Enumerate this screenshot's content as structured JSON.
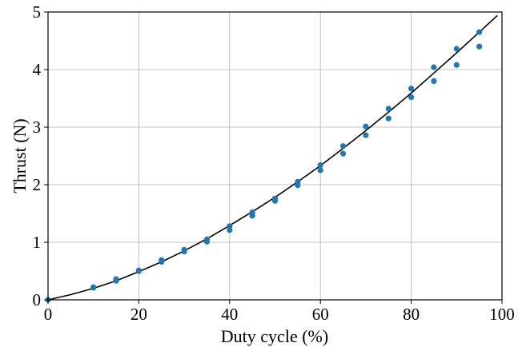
{
  "chart_data": {
    "type": "scatter",
    "xlabel": "Duty cycle (%)",
    "ylabel": "Thrust (N)",
    "xlim": [
      0,
      100
    ],
    "ylim": [
      0,
      5
    ],
    "grid": true,
    "x_ticks": [
      0,
      20,
      40,
      60,
      80,
      100
    ],
    "y_ticks": [
      0,
      1,
      2,
      3,
      4,
      5
    ],
    "x_tick_labels": [
      "0",
      "20",
      "40",
      "60",
      "80",
      "100"
    ],
    "y_tick_labels": [
      "0",
      "1",
      "2",
      "3",
      "4",
      "5"
    ],
    "marker_color": "#1f77b4",
    "curve_color": "#000000",
    "series": [
      {
        "type": "scatter",
        "points": [
          [
            0,
            0.0
          ],
          [
            10,
            0.22
          ],
          [
            10,
            0.21
          ],
          [
            15,
            0.36
          ],
          [
            15,
            0.33
          ],
          [
            20,
            0.51
          ],
          [
            20,
            0.5
          ],
          [
            25,
            0.69
          ],
          [
            25,
            0.66
          ],
          [
            30,
            0.87
          ],
          [
            30,
            0.84
          ],
          [
            35,
            1.05
          ],
          [
            35,
            1.01
          ],
          [
            40,
            1.28
          ],
          [
            40,
            1.21
          ],
          [
            45,
            1.52
          ],
          [
            45,
            1.46
          ],
          [
            50,
            1.76
          ],
          [
            50,
            1.72
          ],
          [
            55,
            2.05
          ],
          [
            55,
            1.99
          ],
          [
            60,
            2.34
          ],
          [
            60,
            2.25
          ],
          [
            65,
            2.67
          ],
          [
            65,
            2.54
          ],
          [
            70,
            3.01
          ],
          [
            70,
            2.86
          ],
          [
            75,
            3.32
          ],
          [
            75,
            3.15
          ],
          [
            80,
            3.67
          ],
          [
            80,
            3.52
          ],
          [
            85,
            4.04
          ],
          [
            85,
            3.8
          ],
          [
            90,
            4.36
          ],
          [
            90,
            4.08
          ],
          [
            95,
            4.65
          ],
          [
            95,
            4.4
          ]
        ]
      },
      {
        "type": "line",
        "x": [
          0,
          5,
          10,
          15,
          20,
          25,
          30,
          35,
          40,
          45,
          50,
          55,
          60,
          65,
          70,
          75,
          80,
          85,
          90,
          95,
          99
        ],
        "y": [
          0,
          0.09,
          0.2,
          0.33,
          0.49,
          0.66,
          0.85,
          1.06,
          1.29,
          1.53,
          1.78,
          2.05,
          2.33,
          2.63,
          2.94,
          3.26,
          3.59,
          3.94,
          4.29,
          4.65,
          4.94
        ]
      }
    ]
  }
}
